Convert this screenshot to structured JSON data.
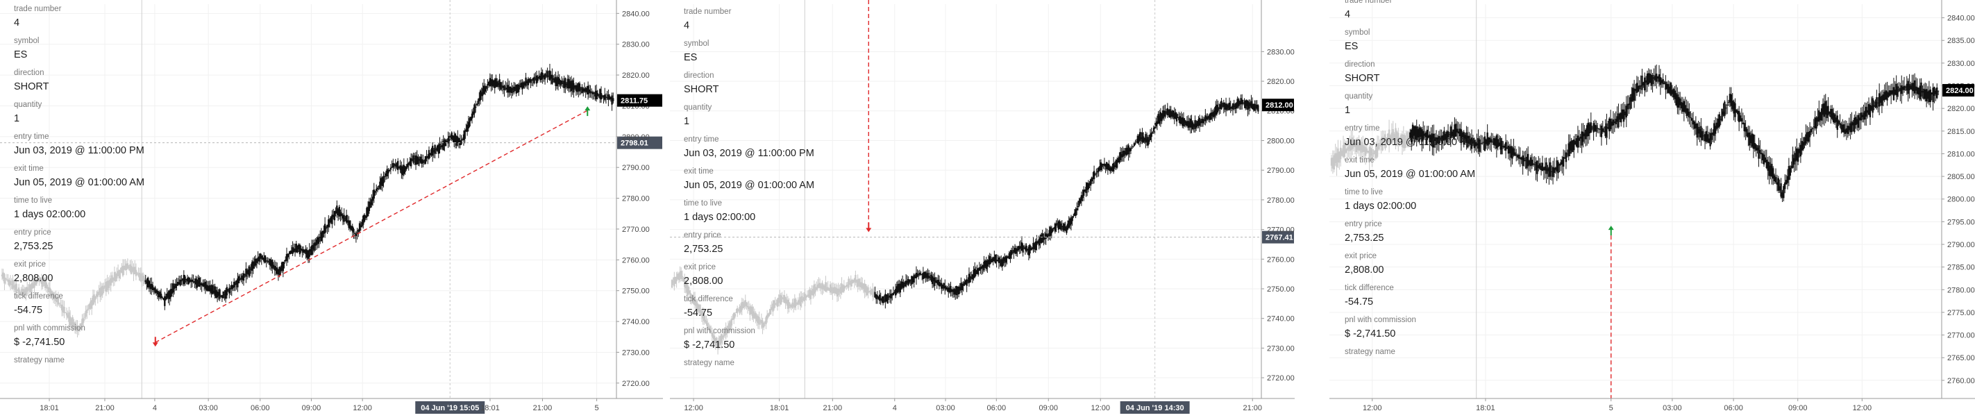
{
  "panels": [
    {
      "info": [
        {
          "label": "trade number",
          "value": "4"
        },
        {
          "label": "symbol",
          "value": "ES"
        },
        {
          "label": "direction",
          "value": "SHORT"
        },
        {
          "label": "quantity",
          "value": "1"
        },
        {
          "label": "entry time",
          "value": "Jun 03, 2019 @ 11:00:00 PM"
        },
        {
          "label": "exit time",
          "value": "Jun 05, 2019 @ 01:00:00 AM"
        },
        {
          "label": "time to live",
          "value": "1 days 02:00:00"
        },
        {
          "label": "entry price",
          "value": "2,753.25"
        },
        {
          "label": "exit price",
          "value": "2,808.00"
        },
        {
          "label": "tick difference",
          "value": "-54.75"
        },
        {
          "label": "pnl with commission",
          "value": "$ -2,741.50"
        },
        {
          "label": "strategy name",
          "value": ""
        }
      ],
      "y_axis": {
        "min": 2715,
        "max": 2843,
        "ticks": [
          "2720.00",
          "2730.00",
          "2740.00",
          "2750.00",
          "2760.00",
          "2770.00",
          "2780.00",
          "2790.00",
          "2800.00",
          "2810.00",
          "2820.00",
          "2830.00",
          "2840.00"
        ]
      },
      "x_ticks": [
        {
          "label": "18:01",
          "f": 0.08
        },
        {
          "label": "21:00",
          "f": 0.17
        },
        {
          "label": "4",
          "f": 0.251
        },
        {
          "label": "03:00",
          "f": 0.338
        },
        {
          "label": "06:00",
          "f": 0.422
        },
        {
          "label": "09:00",
          "f": 0.505
        },
        {
          "label": "12:00",
          "f": 0.588
        },
        {
          "label": "18:01",
          "f": 0.795
        },
        {
          "label": "21:00",
          "f": 0.88
        },
        {
          "label": "5",
          "f": 0.968
        }
      ],
      "crosshair": {
        "x_label": "04 Jun '19   15:05",
        "y_label": "2798.01",
        "price": 2798.01,
        "f": 0.73
      },
      "last_price": {
        "label": "2811.75",
        "value": 2811.75
      },
      "price_series": [
        2755,
        2752,
        2749,
        2751,
        2754,
        2750,
        2746,
        2741,
        2737,
        2744,
        2749,
        2752,
        2755,
        2758,
        2756,
        2753,
        2750,
        2747,
        2751,
        2754,
        2753,
        2752,
        2750,
        2748,
        2751,
        2754,
        2757,
        2761,
        2759,
        2756,
        2762,
        2764,
        2762,
        2766,
        2771,
        2776,
        2773,
        2768,
        2774,
        2782,
        2787,
        2791,
        2789,
        2793,
        2792,
        2795,
        2797,
        2800,
        2798,
        2806,
        2813,
        2818,
        2817,
        2815,
        2816,
        2818,
        2819,
        2820,
        2818,
        2817,
        2816,
        2815,
        2814,
        2813,
        2812
      ],
      "entry": {
        "price": 2733.2,
        "f": 0.252,
        "dir": "down"
      },
      "exit": {
        "price": 2808.5,
        "f": 0.953,
        "dir": "up"
      },
      "colors": {
        "tag_bg": "#000000",
        "cross_bg": "#4a5260",
        "entry": "#e0292b",
        "exit": "#1b9e3a",
        "line": "#e0292b"
      }
    },
    {
      "info": [
        {
          "label": "trade number",
          "value": "4"
        },
        {
          "label": "symbol",
          "value": "ES"
        },
        {
          "label": "direction",
          "value": "SHORT"
        },
        {
          "label": "quantity",
          "value": "1"
        },
        {
          "label": "entry time",
          "value": "Jun 03, 2019 @ 11:00:00 PM"
        },
        {
          "label": "exit time",
          "value": "Jun 05, 2019 @ 01:00:00 AM"
        },
        {
          "label": "time to live",
          "value": "1 days 02:00:00"
        },
        {
          "label": "entry price",
          "value": "2,753.25"
        },
        {
          "label": "exit price",
          "value": "2,808.00"
        },
        {
          "label": "tick difference",
          "value": "-54.75"
        },
        {
          "label": "pnl with commission",
          "value": "$ -2,741.50"
        },
        {
          "label": "strategy name",
          "value": ""
        }
      ],
      "y_axis": {
        "min": 2713,
        "max": 2846,
        "ticks": [
          "2720.00",
          "2730.00",
          "2740.00",
          "2750.00",
          "2760.00",
          "2770.00",
          "2780.00",
          "2790.00",
          "2800.00",
          "2810.00",
          "2820.00",
          "2830.00"
        ]
      },
      "x_ticks": [
        {
          "label": "12:00",
          "f": 0.04
        },
        {
          "label": "18:01",
          "f": 0.185
        },
        {
          "label": "21:00",
          "f": 0.275
        },
        {
          "label": "4",
          "f": 0.38
        },
        {
          "label": "03:00",
          "f": 0.466
        },
        {
          "label": "06:00",
          "f": 0.552
        },
        {
          "label": "09:00",
          "f": 0.64
        },
        {
          "label": "12:00",
          "f": 0.728
        },
        {
          "label": "21:00",
          "f": 0.985
        }
      ],
      "crosshair": {
        "x_label": "04 Jun '19   14:30",
        "y_label": "2767.41",
        "price": 2767.41,
        "f": 0.82
      },
      "last_price": {
        "label": "2812.00",
        "value": 2812.0
      },
      "price_series": [
        2752,
        2755,
        2748,
        2743,
        2737,
        2731,
        2736,
        2742,
        2745,
        2741,
        2738,
        2744,
        2747,
        2744,
        2746,
        2748,
        2751,
        2750,
        2749,
        2751,
        2753,
        2750,
        2748,
        2746,
        2748,
        2751,
        2753,
        2755,
        2754,
        2752,
        2750,
        2749,
        2752,
        2755,
        2758,
        2760,
        2759,
        2762,
        2764,
        2763,
        2766,
        2768,
        2772,
        2770,
        2776,
        2783,
        2788,
        2792,
        2790,
        2795,
        2797,
        2801,
        2800,
        2807,
        2810,
        2808,
        2806,
        2805,
        2807,
        2809,
        2812,
        2811,
        2813,
        2812,
        2811
      ],
      "entry": {
        "price": 2770.5,
        "f": 0.336,
        "dir": "down"
      },
      "exit": null,
      "colors": {
        "tag_bg": "#000000",
        "cross_bg": "#4a5260",
        "entry": "#e0292b",
        "exit": "#1b9e3a",
        "line": "#e0292b"
      }
    },
    {
      "info": [
        {
          "label": "trade number",
          "value": "4"
        },
        {
          "label": "symbol",
          "value": "ES"
        },
        {
          "label": "direction",
          "value": "SHORT"
        },
        {
          "label": "quantity",
          "value": "1"
        },
        {
          "label": "entry time",
          "value": "Jun 03, 2019 @ 11:00:00 PM"
        },
        {
          "label": "exit time",
          "value": "Jun 05, 2019 @ 01:00:00 AM"
        },
        {
          "label": "time to live",
          "value": "1 days 02:00:00"
        },
        {
          "label": "entry price",
          "value": "2,753.25"
        },
        {
          "label": "exit price",
          "value": "2,808.00"
        },
        {
          "label": "tick difference",
          "value": "-54.75"
        },
        {
          "label": "pnl with commission",
          "value": "$ -2,741.50"
        },
        {
          "label": "strategy name",
          "value": ""
        }
      ],
      "y_axis": {
        "min": 2756,
        "max": 2843,
        "ticks": [
          "2760.00",
          "2765.00",
          "2770.00",
          "2775.00",
          "2780.00",
          "2785.00",
          "2790.00",
          "2795.00",
          "2800.00",
          "2805.00",
          "2810.00",
          "2815.00",
          "2820.00",
          "2825.00",
          "2830.00",
          "2835.00",
          "2840.00"
        ]
      },
      "x_ticks": [
        {
          "label": "12:00",
          "f": 0.07
        },
        {
          "label": "18:01",
          "f": 0.255
        },
        {
          "label": "5",
          "f": 0.46
        },
        {
          "label": "03:00",
          "f": 0.56
        },
        {
          "label": "06:00",
          "f": 0.66
        },
        {
          "label": "09:00",
          "f": 0.765
        },
        {
          "label": "12:00",
          "f": 0.87
        }
      ],
      "crosshair": null,
      "last_price": {
        "label": "2824.00",
        "value": 2824.0
      },
      "price_series": [
        2808,
        2810,
        2812,
        2811,
        2810,
        2813,
        2814,
        2813,
        2815,
        2814,
        2813,
        2814,
        2815,
        2813,
        2812,
        2813,
        2812,
        2811,
        2809,
        2808,
        2807,
        2806,
        2808,
        2812,
        2814,
        2816,
        2815,
        2817,
        2819,
        2824,
        2826,
        2827,
        2825,
        2822,
        2819,
        2815,
        2813,
        2817,
        2822,
        2818,
        2813,
        2810,
        2806,
        2801,
        2808,
        2812,
        2816,
        2820,
        2818,
        2815,
        2817,
        2819,
        2821,
        2823,
        2824,
        2825,
        2824,
        2823,
        2824
      ],
      "entry": null,
      "exit": {
        "price": 2793.2,
        "f": 0.46,
        "dir": "up"
      },
      "colors": {
        "tag_bg": "#000000",
        "cross_bg": "#4a5260",
        "entry": "#e0292b",
        "exit": "#1b9e3a",
        "line": "#e0292b"
      }
    }
  ]
}
